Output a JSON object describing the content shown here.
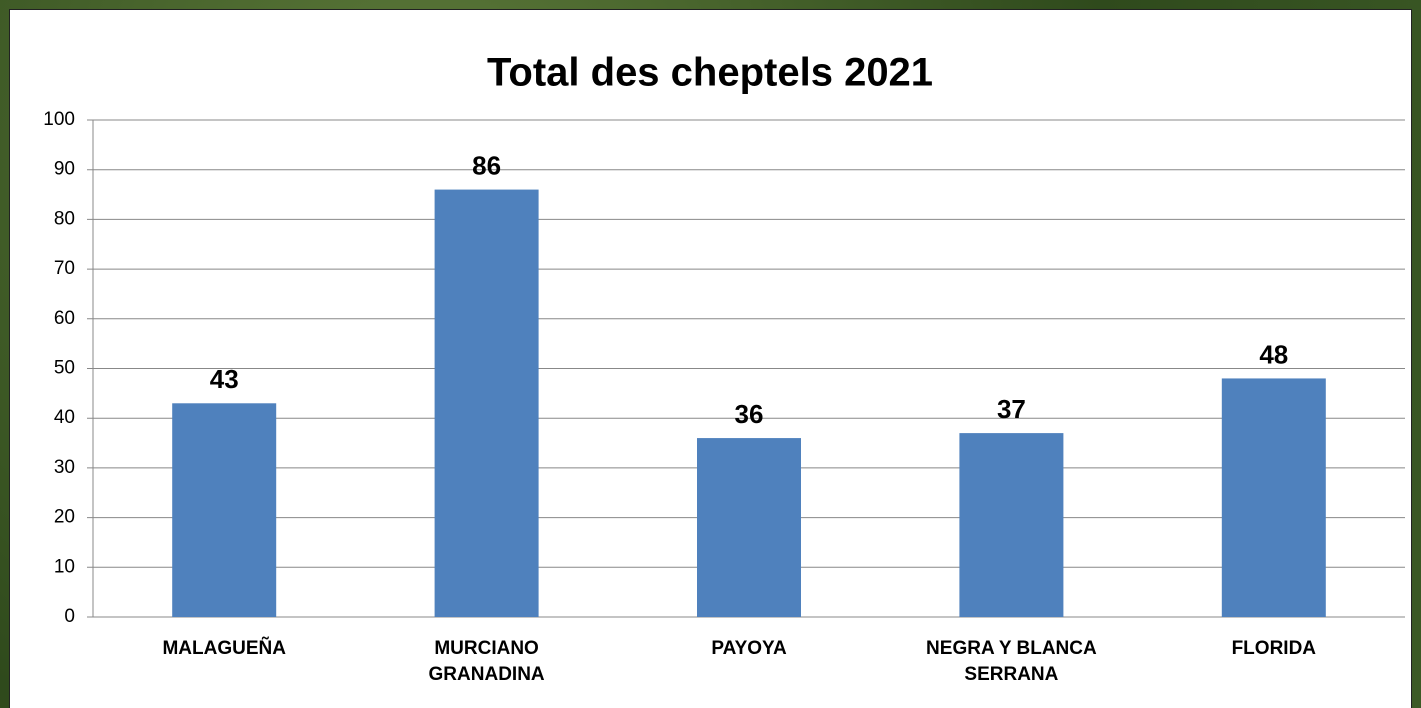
{
  "chart_data": {
    "type": "bar",
    "title": "Total des cheptels 2021",
    "categories": [
      "MALAGUEÑA",
      "MURCIANO GRANADINA",
      "PAYOYA",
      "NEGRA Y BLANCA SERRANA",
      "FLORIDA"
    ],
    "values": [
      43,
      86,
      36,
      37,
      48
    ],
    "color": "#4f81bd",
    "ylim": [
      0,
      100
    ],
    "yticks": [
      0,
      10,
      20,
      30,
      40,
      50,
      60,
      70,
      80,
      90,
      100
    ],
    "grid": true
  }
}
